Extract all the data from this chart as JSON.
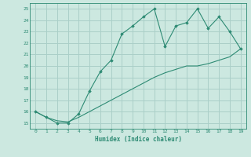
{
  "x": [
    0,
    1,
    2,
    3,
    4,
    5,
    6,
    7,
    8,
    9,
    10,
    11,
    12,
    13,
    14,
    15,
    16,
    17,
    18,
    19
  ],
  "y_wavy": [
    16,
    15.5,
    15,
    15,
    15.8,
    17.8,
    19.5,
    20.5,
    22.8,
    23.5,
    24.3,
    25,
    21.7,
    23.5,
    23.8,
    25,
    23.3,
    24.3,
    23,
    21.5
  ],
  "y_linear": [
    16,
    15.5,
    15.2,
    15.1,
    15.5,
    16.0,
    16.5,
    17.0,
    17.5,
    18.0,
    18.5,
    19.0,
    19.4,
    19.7,
    20.0,
    20.0,
    20.2,
    20.5,
    20.8,
    21.5
  ],
  "line_color": "#2e8b74",
  "bg_color": "#cce8e0",
  "grid_color": "#aacfc8",
  "xlabel": "Humidex (Indice chaleur)",
  "ylim": [
    14.5,
    25.5
  ],
  "xlim": [
    -0.5,
    19.5
  ],
  "yticks": [
    15,
    16,
    17,
    18,
    19,
    20,
    21,
    22,
    23,
    24,
    25
  ],
  "xticks": [
    0,
    1,
    2,
    3,
    4,
    5,
    6,
    7,
    8,
    9,
    10,
    11,
    12,
    13,
    14,
    15,
    16,
    17,
    18,
    19
  ]
}
